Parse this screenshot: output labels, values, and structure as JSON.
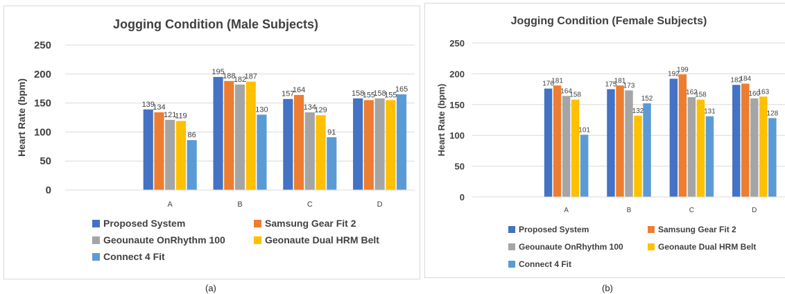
{
  "legend_colors": [
    "#4472c4",
    "#ed7d31",
    "#a5a5a5",
    "#ffc000",
    "#5b9bd5"
  ],
  "captions": {
    "a": "(a)",
    "b": "(b)"
  },
  "chart_data": [
    {
      "type": "bar",
      "title": "Jogging Condition (Male Subjects)",
      "xlabel": "",
      "ylabel": "Heart Rate (bpm)",
      "ylim": [
        0,
        250
      ],
      "yticks": [
        0,
        50,
        100,
        150,
        200,
        250
      ],
      "grid": true,
      "legend_position": "bottom",
      "categories": [
        "",
        "A",
        "B",
        "C",
        "D"
      ],
      "series": [
        {
          "name": "Proposed System",
          "values": [
            null,
            139,
            195,
            157,
            158
          ]
        },
        {
          "name": "Samsung Gear Fit 2",
          "values": [
            null,
            134,
            188,
            164,
            155
          ]
        },
        {
          "name": "Geounaute OnRhythm 100",
          "values": [
            null,
            121,
            182,
            134,
            158
          ]
        },
        {
          "name": "Geonaute Dual HRM Belt",
          "values": [
            null,
            119,
            187,
            129,
            155
          ]
        },
        {
          "name": "Connect 4 Fit",
          "values": [
            null,
            86,
            130,
            91,
            165
          ]
        }
      ]
    },
    {
      "type": "bar",
      "title": "Jogging Condition (Female Subjects)",
      "xlabel": "",
      "ylabel": "Heart Rate (bpm)",
      "ylim": [
        0,
        250
      ],
      "yticks": [
        0,
        50,
        100,
        150,
        200,
        250
      ],
      "grid": true,
      "legend_position": "bottom",
      "categories": [
        "",
        "A",
        "B",
        "C",
        "D"
      ],
      "series": [
        {
          "name": "Proposed System",
          "values": [
            null,
            176,
            175,
            192,
            182
          ]
        },
        {
          "name": "Samsung Gear Fit 2",
          "values": [
            null,
            181,
            181,
            199,
            184
          ]
        },
        {
          "name": "Geounaute OnRhythm 100",
          "values": [
            null,
            164,
            173,
            162,
            160
          ]
        },
        {
          "name": "Geonaute Dual HRM Belt",
          "values": [
            null,
            158,
            132,
            158,
            163
          ]
        },
        {
          "name": "Connect 4 Fit",
          "values": [
            null,
            101,
            152,
            131,
            128
          ]
        }
      ]
    }
  ]
}
